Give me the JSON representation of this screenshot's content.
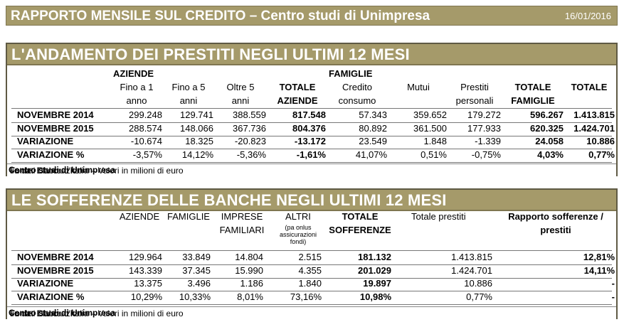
{
  "header": {
    "title": "RAPPORTO MENSILE SUL CREDITO – Centro studi di Unimpresa",
    "date": "16/01/2016"
  },
  "t1": {
    "title": "L'ANDAMENTO DEI PRESTITI NEGLI ULTIMI 12 MESI",
    "group_aziende": "AZIENDE",
    "group_famiglie": "FAMIGLIE",
    "cols": [
      {
        "l1": "Fino a 1",
        "l2": "anno"
      },
      {
        "l1": "Fino a 5",
        "l2": "anni"
      },
      {
        "l1": "Oltre 5",
        "l2": "anni"
      },
      {
        "l1": "TOTALE",
        "l2": "AZIENDE"
      },
      {
        "l1": "Credito",
        "l2": "consumo"
      },
      {
        "l1": "Mutui",
        "l2": ""
      },
      {
        "l1": "Prestiti",
        "l2": "personali"
      },
      {
        "l1": "TOTALE",
        "l2": "FAMIGLIE"
      },
      {
        "l1": "TOTALE",
        "l2": ""
      }
    ],
    "rows": [
      {
        "label": "NOVEMBRE 2014",
        "v": [
          "299.248",
          "129.741",
          "388.559",
          "817.548",
          "57.343",
          "359.652",
          "179.272",
          "596.267",
          "1.413.815"
        ]
      },
      {
        "label": "NOVEMBRE 2015",
        "v": [
          "288.574",
          "148.066",
          "367.736",
          "804.376",
          "80.892",
          "361.500",
          "177.933",
          "620.325",
          "1.424.701"
        ]
      },
      {
        "label": "VARIAZIONE",
        "v": [
          "-10.674",
          "18.325",
          "-20.823",
          "-13.172",
          "23.549",
          "1.848",
          "-1.339",
          "24.058",
          "10.886"
        ]
      },
      {
        "label": "VARIAZIONE %",
        "v": [
          "-3,57%",
          "14,12%",
          "-5,36%",
          "-1,61%",
          "41,07%",
          "0,51%",
          "-0,75%",
          "4,03%",
          "0,77%"
        ]
      }
    ],
    "foot_pre": "Fonte. Elaborazioni ",
    "foot_bold": "Centro studi di Unimpresa",
    "foot_post": " su dati Banca d'Italia – Valori in milioni di euro"
  },
  "t2": {
    "title": "LE SOFFERENZE DELLE BANCHE NEGLI ULTIMI 12 MESI",
    "h_aziende": "AZIENDE",
    "h_famiglie": "FAMIGLIE",
    "h_imprese_1": "IMPRESE",
    "h_imprese_2": "FAMILIARI",
    "h_altri": "ALTRI",
    "h_altri_note_1": "(pa onlus",
    "h_altri_note_2": "assicurazioni",
    "h_altri_note_3": "fondi)",
    "h_tot_1": "TOTALE",
    "h_tot_2": "SOFFERENZE",
    "h_prestiti": "Totale prestiti",
    "h_rapp_1": "Rapporto sofferenze /",
    "h_rapp_2": "prestiti",
    "rows": [
      {
        "label": "NOVEMBRE 2014",
        "v": [
          "129.964",
          "33.849",
          "14.804",
          "2.515",
          "181.132",
          "1.413.815",
          "12,81%"
        ]
      },
      {
        "label": "NOVEMBRE 2015",
        "v": [
          "143.339",
          "37.345",
          "15.990",
          "4.355",
          "201.029",
          "1.424.701",
          "14,11%"
        ]
      },
      {
        "label": "VARIAZIONE",
        "v": [
          "13.375",
          "3.496",
          "1.186",
          "1.840",
          "19.897",
          "10.886",
          "-"
        ]
      },
      {
        "label": "VARIAZIONE %",
        "v": [
          "10,29%",
          "10,33%",
          "8,01%",
          "73,16%",
          "10,98%",
          "0,77%",
          "-"
        ]
      }
    ],
    "foot_pre": "Fonte. Elaborazioni ",
    "foot_bold": "Centro studi di Unimpresa",
    "foot_post": " su dati Banca d'Italia – Valori in milioni di euro"
  }
}
